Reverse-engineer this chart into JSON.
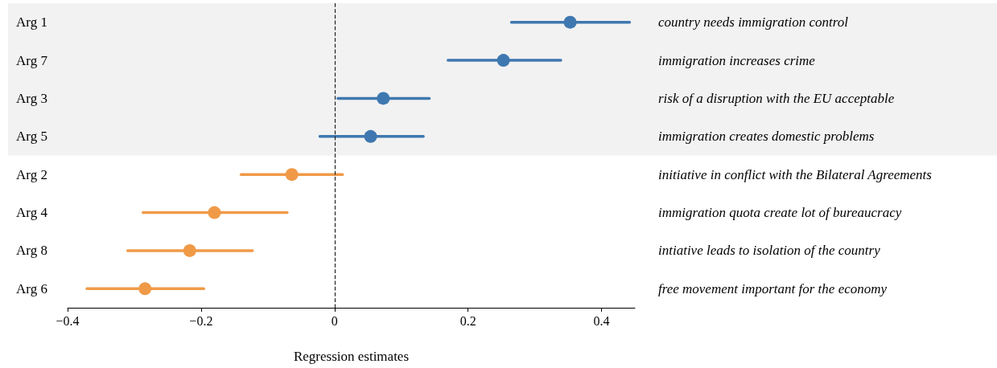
{
  "chart_data": {
    "type": "scatter",
    "orientation": "horizontal",
    "xlabel": "Regression estimates",
    "categories": [
      "Arg 1",
      "Arg 7",
      "Arg 3",
      "Arg 5",
      "Arg 2",
      "Arg 4",
      "Arg 8",
      "Arg 6"
    ],
    "series": [
      {
        "color": "#3f78b0",
        "values": [
          0.353,
          0.253,
          0.073,
          0.054,
          null,
          null,
          null,
          null
        ],
        "errors": [
          [
            0.265,
            0.442
          ],
          [
            0.17,
            0.339
          ],
          [
            0.005,
            0.142
          ],
          [
            -0.022,
            0.133
          ],
          null,
          null,
          null,
          null
        ]
      },
      {
        "color": "#f09a48",
        "values": [
          null,
          null,
          null,
          null,
          -0.064,
          -0.18,
          -0.217,
          -0.284
        ],
        "errors": [
          null,
          null,
          null,
          null,
          [
            -0.14,
            0.012
          ],
          [
            -0.287,
            -0.071
          ],
          [
            -0.31,
            -0.123
          ],
          [
            -0.371,
            -0.196
          ]
        ]
      }
    ],
    "xlim": [
      -0.4,
      0.45
    ],
    "xticks": [
      {
        "value": -0.4,
        "label": "−0.4"
      },
      {
        "value": -0.2,
        "label": "−0.2"
      },
      0,
      0.2,
      0.4
    ],
    "marker": "circle",
    "grid": false,
    "ref_lines": [
      {
        "axis": "x",
        "value": 0,
        "line_style": "dashed",
        "color": "#222222"
      }
    ],
    "bands": [
      {
        "axis": "y",
        "from": "Arg 1",
        "to": "Arg 5",
        "color": "#f2f2f2"
      }
    ],
    "annotations": [
      "country needs immigration control",
      "immigration increases crime",
      "risk of a disruption with the EU acceptable",
      "immigration creates domestic problems",
      "initiative in conflict with the Bilateral Agreements",
      "immigration quota create lot of bureaucracy",
      "intiative leads to isolation of the country",
      "free movement important for the economy"
    ]
  }
}
